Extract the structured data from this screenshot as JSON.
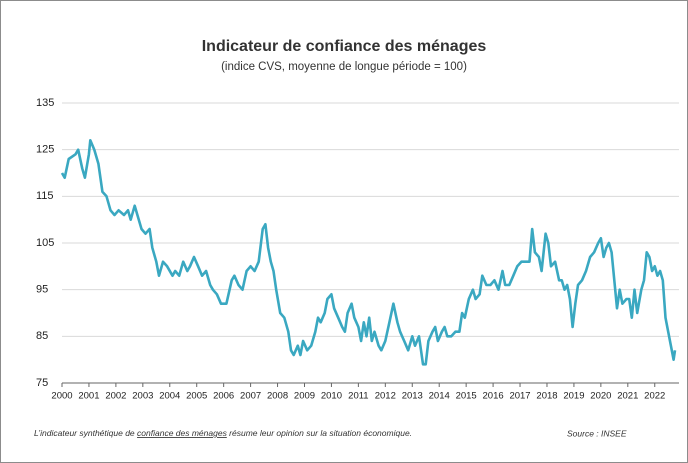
{
  "chart_data": {
    "type": "line",
    "title": "Indicateur de confiance des ménages",
    "subtitle": "(indice CVS, moyenne de longue période = 100)",
    "color": "#3aa8c1",
    "grid": true,
    "ylim": [
      75,
      135
    ],
    "yticks": [
      75,
      85,
      95,
      105,
      115,
      125,
      135
    ],
    "xlim": [
      2000,
      2022.9
    ],
    "xticks": [
      2000,
      2001,
      2002,
      2003,
      2004,
      2005,
      2006,
      2007,
      2008,
      2009,
      2010,
      2011,
      2012,
      2013,
      2014,
      2015,
      2016,
      2017,
      2018,
      2019,
      2020,
      2021,
      2022
    ],
    "x": [
      2000.0,
      2000.1,
      2000.25,
      2000.5,
      2000.6,
      2000.75,
      2000.85,
      2001.0,
      2001.05,
      2001.2,
      2001.35,
      2001.5,
      2001.65,
      2001.8,
      2001.95,
      2002.1,
      2002.3,
      2002.45,
      2002.55,
      2002.7,
      2002.8,
      2002.95,
      2003.1,
      2003.25,
      2003.35,
      2003.5,
      2003.6,
      2003.75,
      2003.9,
      2004.1,
      2004.2,
      2004.35,
      2004.5,
      2004.65,
      2004.75,
      2004.9,
      2005.05,
      2005.2,
      2005.35,
      2005.5,
      2005.6,
      2005.75,
      2005.9,
      2006.1,
      2006.3,
      2006.4,
      2006.55,
      2006.7,
      2006.85,
      2007.0,
      2007.15,
      2007.3,
      2007.45,
      2007.55,
      2007.65,
      2007.75,
      2007.85,
      2007.95,
      2008.1,
      2008.25,
      2008.4,
      2008.5,
      2008.6,
      2008.75,
      2008.85,
      2008.95,
      2009.1,
      2009.25,
      2009.4,
      2009.5,
      2009.6,
      2009.75,
      2009.85,
      2010.0,
      2010.1,
      2010.25,
      2010.4,
      2010.5,
      2010.6,
      2010.75,
      2010.85,
      2011.0,
      2011.1,
      2011.2,
      2011.3,
      2011.4,
      2011.5,
      2011.6,
      2011.75,
      2011.85,
      2012.0,
      2012.15,
      2012.3,
      2012.45,
      2012.55,
      2012.7,
      2012.85,
      2013.0,
      2013.1,
      2013.25,
      2013.4,
      2013.5,
      2013.6,
      2013.75,
      2013.85,
      2013.95,
      2014.1,
      2014.2,
      2014.3,
      2014.45,
      2014.6,
      2014.75,
      2014.85,
      2014.95,
      2015.1,
      2015.25,
      2015.35,
      2015.5,
      2015.6,
      2015.75,
      2015.9,
      2016.05,
      2016.2,
      2016.35,
      2016.45,
      2016.6,
      2016.75,
      2016.9,
      2017.05,
      2017.2,
      2017.35,
      2017.45,
      2017.55,
      2017.7,
      2017.8,
      2017.95,
      2018.05,
      2018.15,
      2018.3,
      2018.45,
      2018.55,
      2018.65,
      2018.75,
      2018.85,
      2018.95,
      2019.05,
      2019.15,
      2019.3,
      2019.45,
      2019.6,
      2019.75,
      2019.9,
      2020.0,
      2020.1,
      2020.2,
      2020.3,
      2020.4,
      2020.5,
      2020.6,
      2020.7,
      2020.8,
      2020.95,
      2021.05,
      2021.15,
      2021.25,
      2021.35,
      2021.5,
      2021.6,
      2021.7,
      2021.8,
      2021.9,
      2022.0,
      2022.1,
      2022.2,
      2022.3,
      2022.4,
      2022.5,
      2022.6,
      2022.7,
      2022.75
    ],
    "values": [
      120,
      119,
      123,
      124,
      125,
      121,
      119,
      124,
      127,
      125,
      122,
      116,
      115,
      112,
      111,
      112,
      111,
      112,
      110,
      113,
      111,
      108,
      107,
      108,
      104,
      101,
      98,
      101,
      100,
      98,
      99,
      98,
      101,
      99,
      100,
      102,
      100,
      98,
      99,
      96,
      95,
      94,
      92,
      92,
      97,
      98,
      96,
      95,
      99,
      100,
      99,
      101,
      108,
      109,
      104,
      101,
      99,
      95,
      90,
      89,
      86,
      82,
      81,
      83,
      81,
      84,
      82,
      83,
      86,
      89,
      88,
      90,
      93,
      94,
      91,
      89,
      87,
      86,
      90,
      92,
      89,
      87,
      84,
      88,
      85,
      89,
      84,
      86,
      83,
      82,
      84,
      88,
      92,
      88,
      86,
      84,
      82,
      85,
      83,
      85,
      79,
      79,
      84,
      86,
      87,
      84,
      86,
      87,
      85,
      85,
      86,
      86,
      90,
      89,
      93,
      95,
      93,
      94,
      98,
      96,
      96,
      97,
      95,
      99,
      96,
      96,
      98,
      100,
      101,
      101,
      101,
      108,
      103,
      102,
      99,
      107,
      105,
      100,
      101,
      97,
      97,
      95,
      96,
      93,
      87,
      92,
      96,
      97,
      99,
      102,
      103,
      105,
      106,
      102,
      104,
      105,
      103,
      97,
      91,
      95,
      92,
      93,
      93,
      89,
      95,
      90,
      95,
      97,
      103,
      102,
      99,
      100,
      98,
      99,
      97,
      89,
      86,
      83,
      80,
      82
    ],
    "note": [
      "L’indicateur synthétique de ",
      "confiance des ménages",
      " résume leur opinion sur la situation économique."
    ],
    "source": "Source : INSEE"
  }
}
